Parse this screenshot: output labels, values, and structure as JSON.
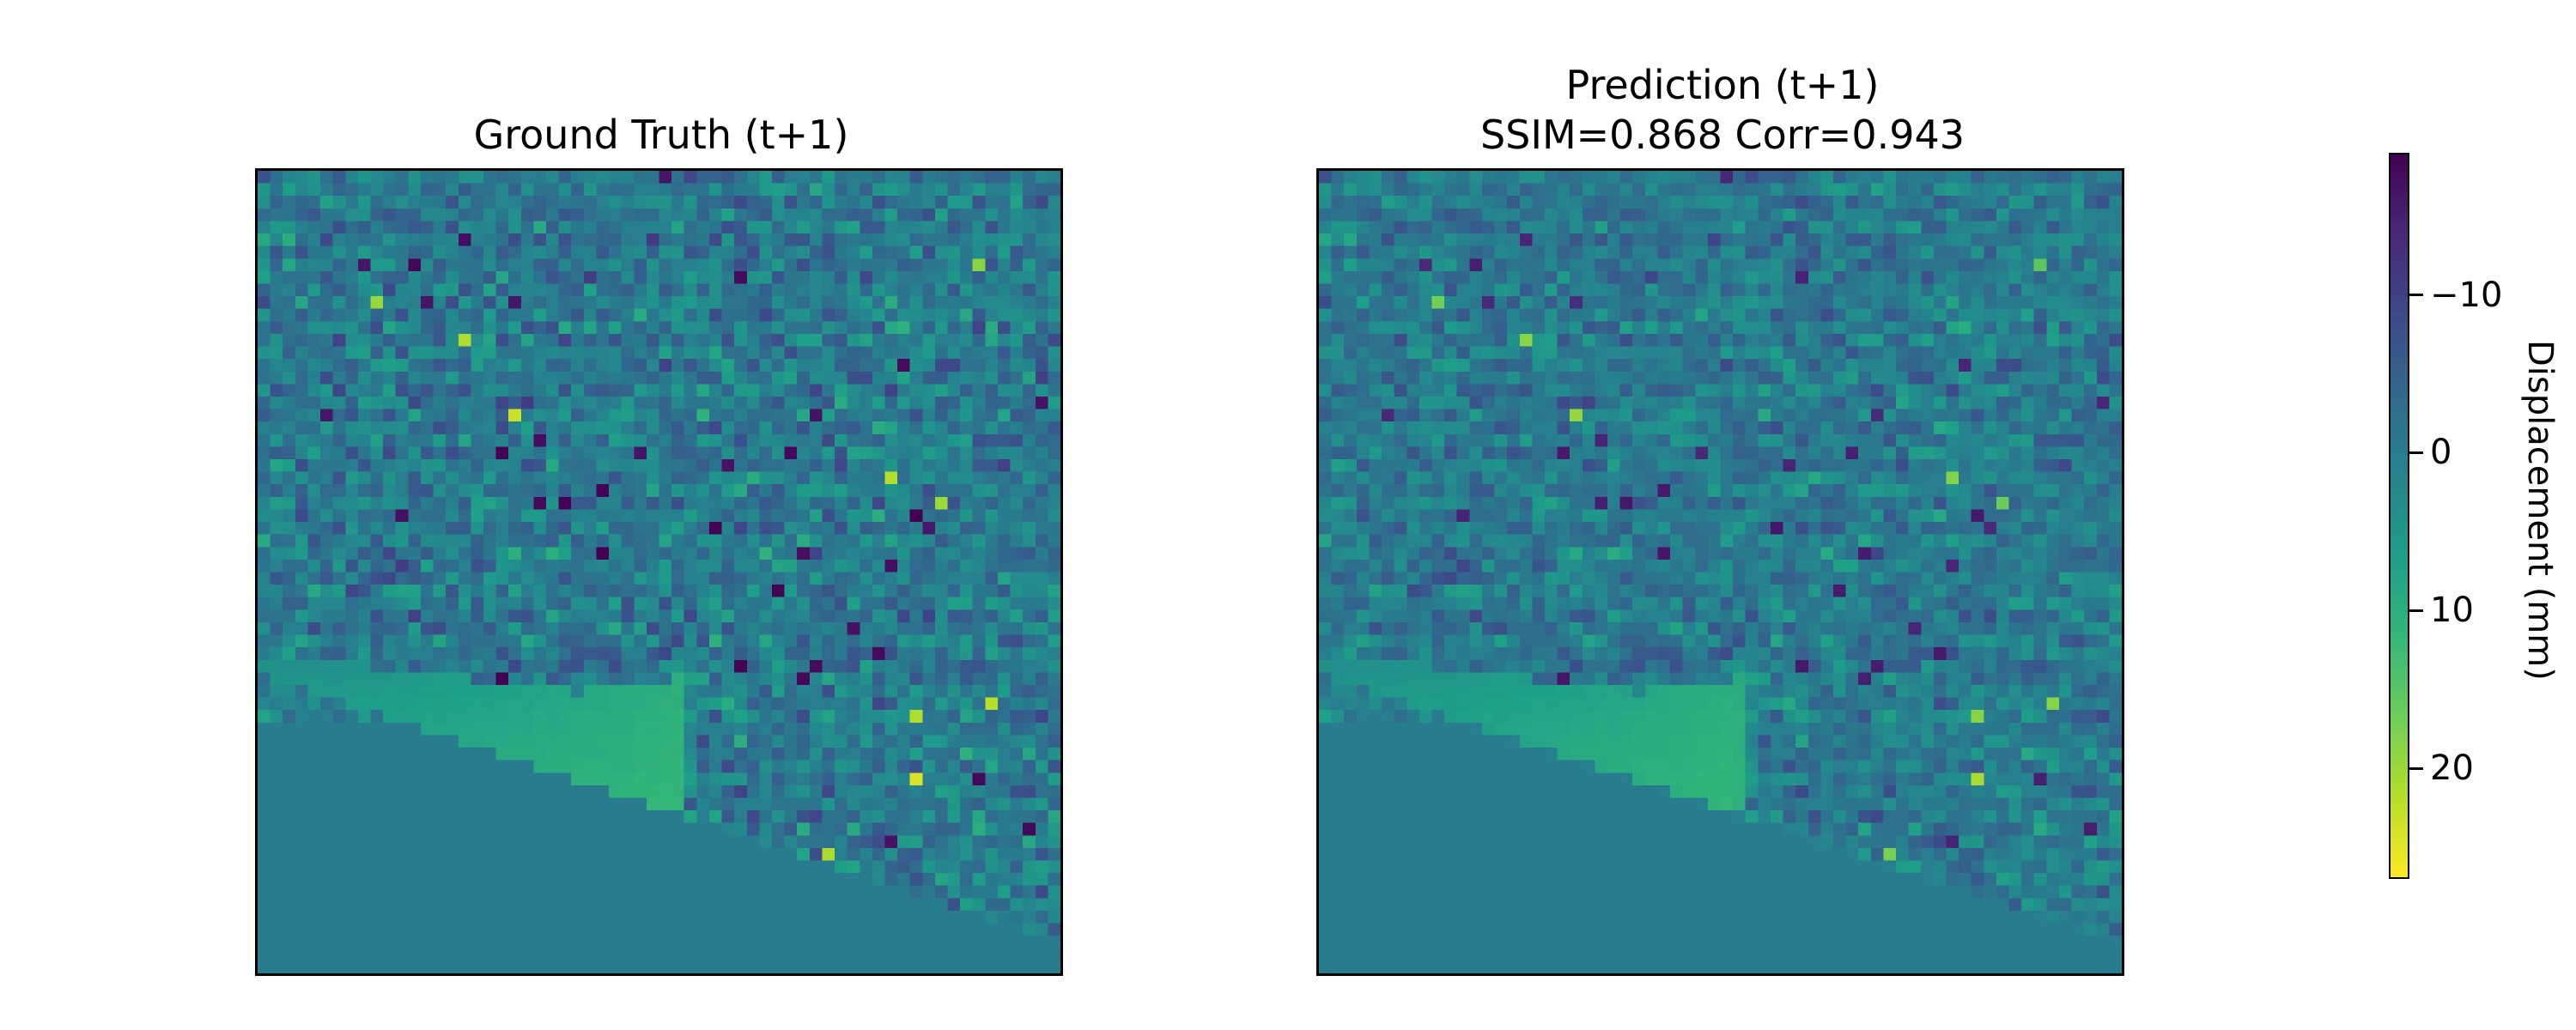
{
  "chart_data": [
    {
      "type": "heatmap",
      "title": "Ground Truth (t+1)",
      "grid": false,
      "colormap": "viridis",
      "value_range": [
        -19,
        27
      ],
      "description_of_field": "noisy displacement field (~64x64 cells) centered near 0 mm, with a smooth wedge-shaped uplift (about 8–12 mm) in the lower-left and a flat ~0 mm region in the bottom-left corner"
    },
    {
      "type": "heatmap",
      "title": "Prediction (t+1)",
      "subtitle": "SSIM=0.868  Corr=0.943",
      "metrics": {
        "SSIM": 0.868,
        "Corr": 0.943
      },
      "grid": false,
      "colormap": "viridis",
      "value_range": [
        -19,
        27
      ]
    }
  ],
  "colorbar": {
    "label": "Displacement (mm)",
    "ticks": [
      {
        "value": -10,
        "label": "−10"
      },
      {
        "value": 0,
        "label": "0"
      },
      {
        "value": 10,
        "label": "10"
      },
      {
        "value": 20,
        "label": "20"
      }
    ],
    "range": [
      -19,
      27
    ],
    "direction": "reversed (negative at top)",
    "colors": [
      "#440154",
      "#482878",
      "#3e4989",
      "#31688e",
      "#26828e",
      "#1f9e89",
      "#35b779",
      "#6ece58",
      "#b5de2b",
      "#fde725"
    ]
  }
}
